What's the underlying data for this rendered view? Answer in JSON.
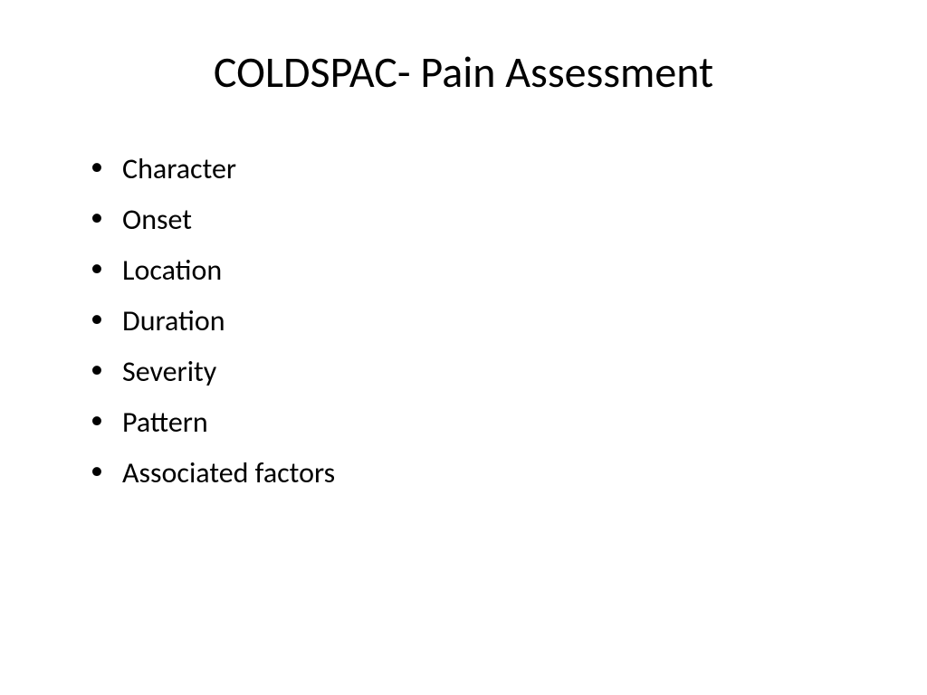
{
  "slide": {
    "title": "COLDSPAC- Pain Assessment",
    "bullets": [
      "Character",
      "Onset",
      "Location",
      "Duration",
      "Severity",
      "Pattern",
      "Associated factors"
    ],
    "styling": {
      "background_color": "#ffffff",
      "text_color": "#000000",
      "title_fontsize": 48,
      "bullet_fontsize": 32,
      "font_family": "Calibri"
    }
  }
}
